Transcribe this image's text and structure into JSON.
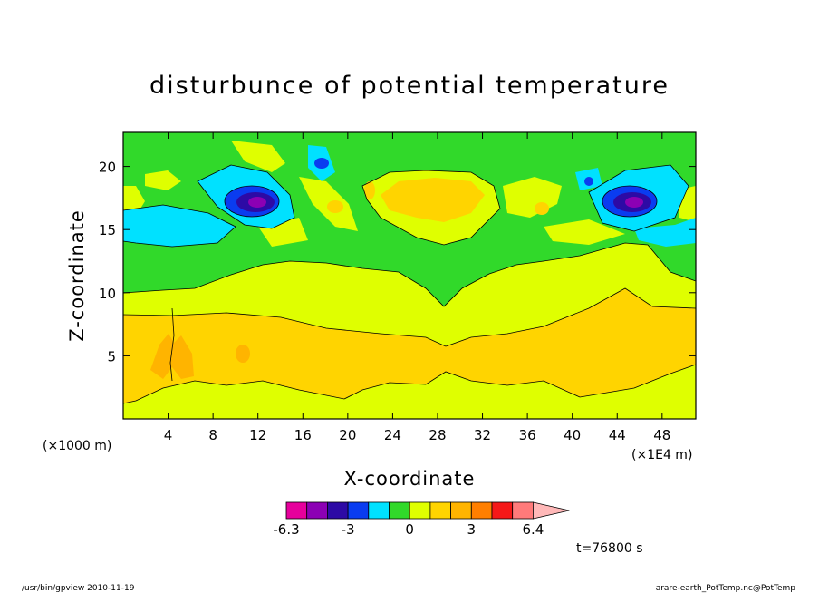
{
  "chart_data": {
    "type": "heatmap",
    "title": "disturbunce of potential temperature",
    "xlabel": "X-coordinate",
    "ylabel": "Z-coordinate",
    "x_unit_left": "(×1000 m)",
    "x_unit_right": "(×1E4 m)",
    "x_ticks": [
      "4",
      "8",
      "12",
      "16",
      "20",
      "24",
      "28",
      "32",
      "36",
      "40",
      "44",
      "48"
    ],
    "y_ticks": [
      "5",
      "10",
      "15",
      "20"
    ],
    "xlim": [
      0,
      51
    ],
    "ylim": [
      0,
      22.7
    ],
    "grid": false,
    "colorbar": {
      "colors": [
        "#e6009c",
        "#8c00b4",
        "#2d0aa5",
        "#0a3cf0",
        "#00e1ff",
        "#31d92a",
        "#dfff00",
        "#ffd400",
        "#ffb400",
        "#ff7f00",
        "#f51818",
        "#ff7a7a",
        "#ffb8b8"
      ],
      "tick_labels": [
        "-6.3",
        "-3",
        "0",
        "3",
        "6.4"
      ],
      "placement": "bottom"
    },
    "time_label": "t=76800 s"
  },
  "footer": {
    "left": "/usr/bin/gpview   2010-11-19",
    "right": "arare-earth_PotTemp.nc@PotTemp"
  }
}
